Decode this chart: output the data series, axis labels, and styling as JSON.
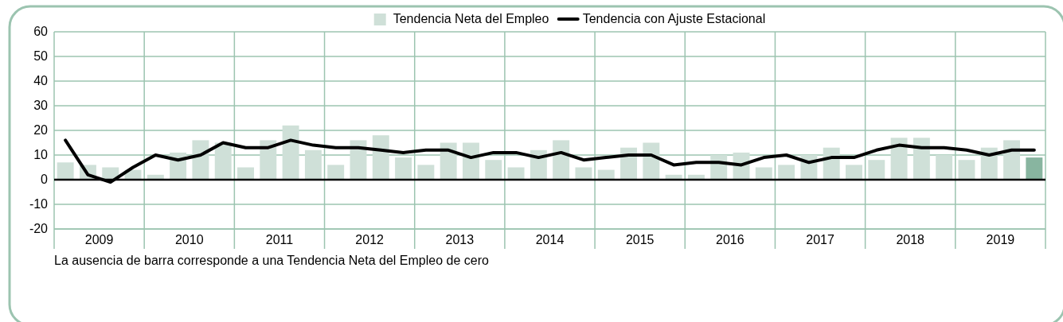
{
  "chart_data": {
    "type": "bar",
    "x": [
      2009.125,
      2009.375,
      2009.625,
      2009.875,
      2010.125,
      2010.375,
      2010.625,
      2010.875,
      2011.125,
      2011.375,
      2011.625,
      2011.875,
      2012.125,
      2012.375,
      2012.625,
      2012.875,
      2013.125,
      2013.375,
      2013.625,
      2013.875,
      2014.125,
      2014.375,
      2014.625,
      2014.875,
      2015.125,
      2015.375,
      2015.625,
      2015.875,
      2016.125,
      2016.375,
      2016.625,
      2016.875,
      2017.125,
      2017.375,
      2017.625,
      2017.875,
      2018.125,
      2018.375,
      2018.625,
      2018.875,
      2019.125,
      2019.375,
      2019.625,
      2019.875
    ],
    "series": [
      {
        "name": "Tendencia Neta del Empleo",
        "color": "#cfe0d8",
        "colors": [
          "#cfe0d8",
          "#cfe0d8",
          "#cfe0d8",
          "#cfe0d8",
          "#cfe0d8",
          "#cfe0d8",
          "#cfe0d8",
          "#cfe0d8",
          "#cfe0d8",
          "#cfe0d8",
          "#cfe0d8",
          "#cfe0d8",
          "#cfe0d8",
          "#cfe0d8",
          "#cfe0d8",
          "#cfe0d8",
          "#cfe0d8",
          "#cfe0d8",
          "#cfe0d8",
          "#cfe0d8",
          "#cfe0d8",
          "#cfe0d8",
          "#cfe0d8",
          "#cfe0d8",
          "#cfe0d8",
          "#cfe0d8",
          "#cfe0d8",
          "#cfe0d8",
          "#cfe0d8",
          "#cfe0d8",
          "#cfe0d8",
          "#cfe0d8",
          "#cfe0d8",
          "#cfe0d8",
          "#cfe0d8",
          "#cfe0d8",
          "#cfe0d8",
          "#cfe0d8",
          "#cfe0d8",
          "#cfe0d8",
          "#cfe0d8",
          "#cfe0d8",
          "#cfe0d8",
          "#88b5a0"
        ],
        "values": [
          7,
          6,
          5,
          4,
          2,
          11,
          16,
          15,
          5,
          16,
          22,
          12,
          6,
          16,
          18,
          9,
          6,
          15,
          15,
          8,
          5,
          12,
          16,
          5,
          4,
          13,
          15,
          2,
          2,
          10,
          11,
          5,
          6,
          10,
          13,
          6,
          8,
          17,
          17,
          10,
          8,
          13,
          16,
          9
        ]
      },
      {
        "name": "Tendencia con Ajuste Estacional",
        "type": "line",
        "color": "#000000",
        "values": [
          16,
          2,
          -1,
          5,
          10,
          8,
          10,
          15,
          13,
          13,
          16,
          14,
          13,
          13,
          12,
          11,
          12,
          12,
          9,
          11,
          11,
          9,
          11,
          8,
          9,
          10,
          10,
          6,
          7,
          7,
          6,
          9,
          10,
          7,
          9,
          9,
          12,
          14,
          13,
          13,
          12,
          10,
          12,
          12
        ]
      }
    ],
    "xlim": [
      2009,
      2020
    ],
    "xticks": [
      {
        "value": 2009.5,
        "label": "2009"
      },
      {
        "value": 2010,
        "label": null
      },
      {
        "value": 2010.5,
        "label": "2010"
      },
      {
        "value": 2011,
        "label": null
      },
      {
        "value": 2011.5,
        "label": "2011"
      },
      {
        "value": 2012,
        "label": null
      },
      {
        "value": 2012.5,
        "label": "2012"
      },
      {
        "value": 2013,
        "label": null
      },
      {
        "value": 2013.5,
        "label": "2013"
      },
      {
        "value": 2014,
        "label": null
      },
      {
        "value": 2014.5,
        "label": "2014"
      },
      {
        "value": 2015,
        "label": null
      },
      {
        "value": 2015.5,
        "label": "2015"
      },
      {
        "value": 2016,
        "label": null
      },
      {
        "value": 2016.5,
        "label": "2016"
      },
      {
        "value": 2017,
        "label": null
      },
      {
        "value": 2017.5,
        "label": "2017"
      },
      {
        "value": 2018,
        "label": null
      },
      {
        "value": 2018.5,
        "label": "2018"
      },
      {
        "value": 2019,
        "label": null
      },
      {
        "value": 2019.5,
        "label": "2019"
      }
    ],
    "ylim": [
      -20,
      60
    ],
    "yticks": [
      -20,
      -10,
      0,
      10,
      20,
      30,
      40,
      50,
      60
    ],
    "grid": true,
    "legend": "top",
    "ref_lines": [
      {
        "axis": "y",
        "value": 0,
        "color": "#000000"
      }
    ],
    "annotations": [
      "La ausencia de barra corresponde a una Tendencia Neta del Empleo de cero"
    ]
  }
}
